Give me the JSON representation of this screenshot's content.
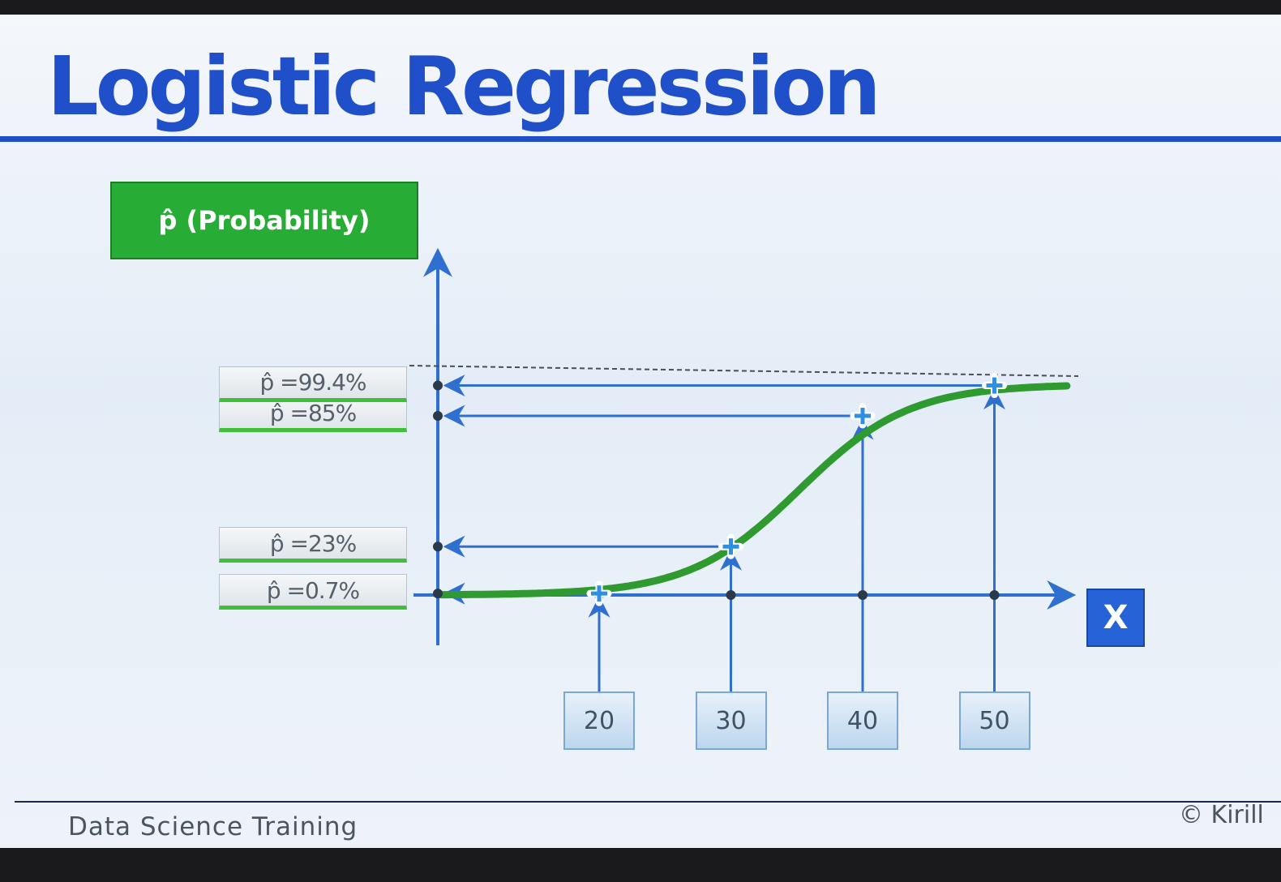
{
  "slide": {
    "title": "Logistic Regression",
    "footer": "Data Science Training",
    "copyright": "© Kirill"
  },
  "chart_data": {
    "type": "line",
    "y_axis_label": "p̂ (Probability)",
    "x_axis_label": "X",
    "curve": "logistic sigmoid",
    "points": [
      {
        "x": 20,
        "x_label": "20",
        "p": 0.7,
        "p_label": "p̂ =0.7%"
      },
      {
        "x": 30,
        "x_label": "30",
        "p": 23,
        "p_label": "p̂ =23%"
      },
      {
        "x": 40,
        "x_label": "40",
        "p": 85,
        "p_label": "p̂ =85%"
      },
      {
        "x": 50,
        "x_label": "50",
        "p": 99.4,
        "p_label": "p̂ =99.4%"
      }
    ],
    "colors": {
      "curve": "#2f9a2f",
      "axis": "#2f6fd0",
      "guide": "#2f6fd0",
      "title": "#1f4fc9",
      "prob_box": "#27ad35",
      "x_label_box": "#2563d6"
    }
  }
}
